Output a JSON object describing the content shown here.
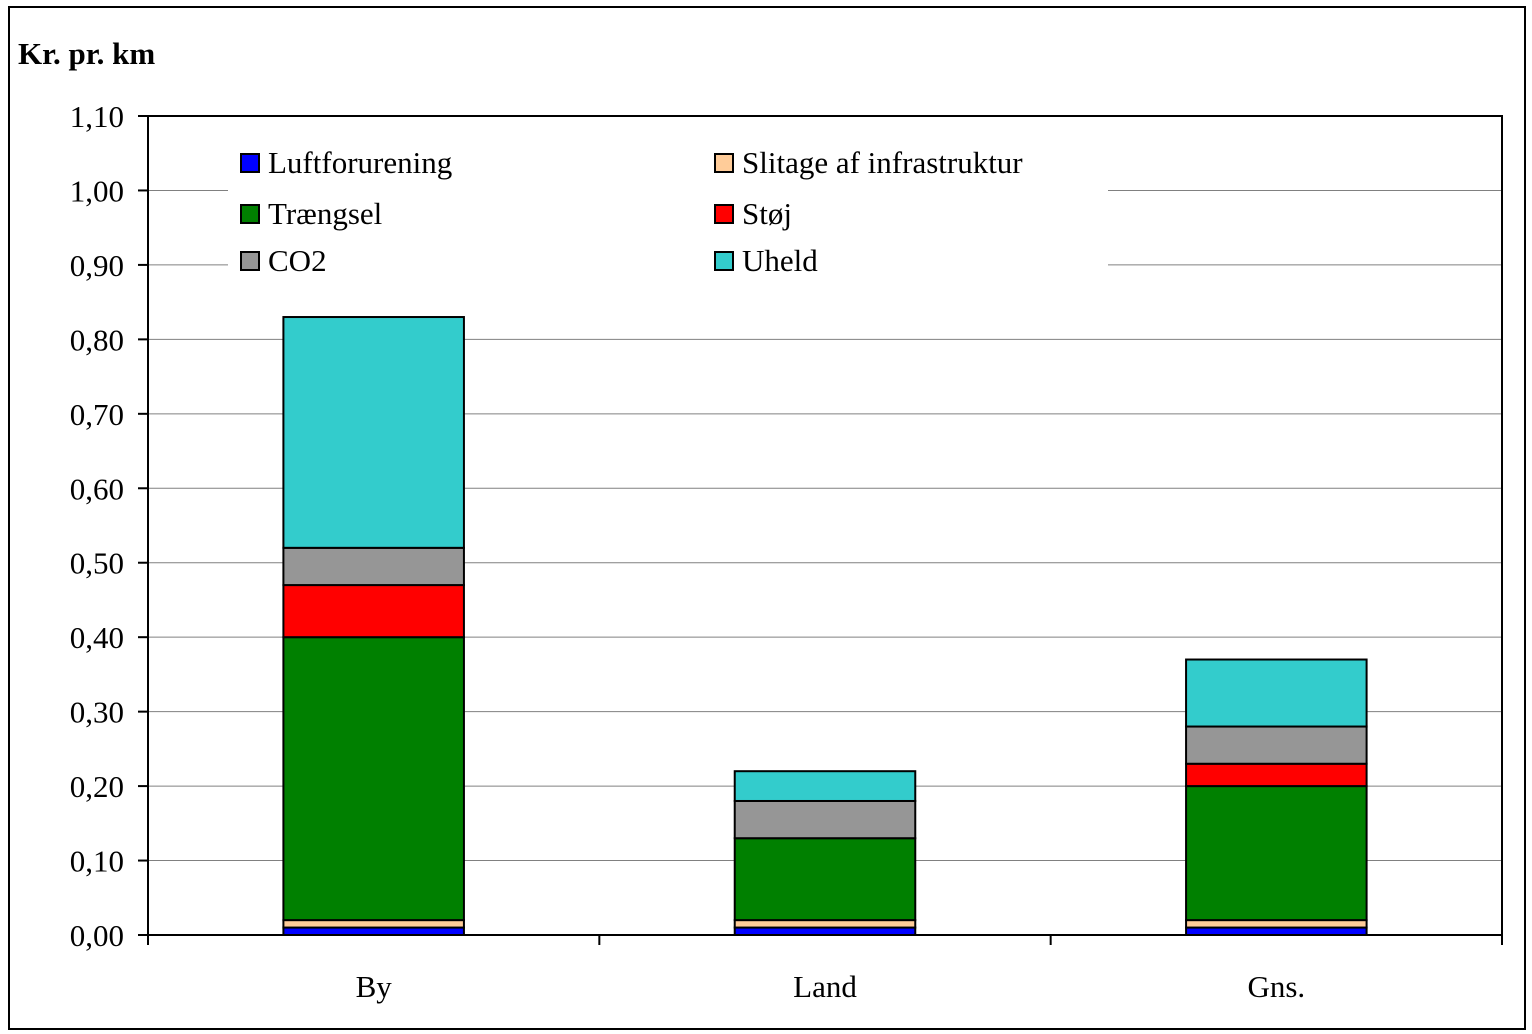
{
  "chart_data": {
    "type": "bar",
    "stacked": true,
    "title": "Kr. pr. km",
    "xlabel": "",
    "ylabel": "",
    "ylim": [
      0,
      1.1
    ],
    "yticks": [
      "0,00",
      "0,10",
      "0,20",
      "0,30",
      "0,40",
      "0,50",
      "0,60",
      "0,70",
      "0,80",
      "0,90",
      "1,00",
      "1,10"
    ],
    "grid": true,
    "legend_position": "top-left",
    "categories": [
      "By",
      "Land",
      "Gns."
    ],
    "series": [
      {
        "name": "Luftforurening",
        "color": "#0000ff",
        "values": [
          0.01,
          0.01,
          0.01
        ]
      },
      {
        "name": "Slitage af infrastruktur",
        "color": "#ffcc99",
        "values": [
          0.01,
          0.01,
          0.01
        ]
      },
      {
        "name": "Trængsel",
        "color": "#008000",
        "values": [
          0.38,
          0.11,
          0.18
        ]
      },
      {
        "name": "Støj",
        "color": "#ff0000",
        "values": [
          0.07,
          0.0,
          0.03
        ]
      },
      {
        "name": "CO2",
        "color": "#969696",
        "values": [
          0.05,
          0.05,
          0.05
        ]
      },
      {
        "name": "Uheld",
        "color": "#33cccc",
        "values": [
          0.31,
          0.04,
          0.09
        ]
      }
    ]
  }
}
